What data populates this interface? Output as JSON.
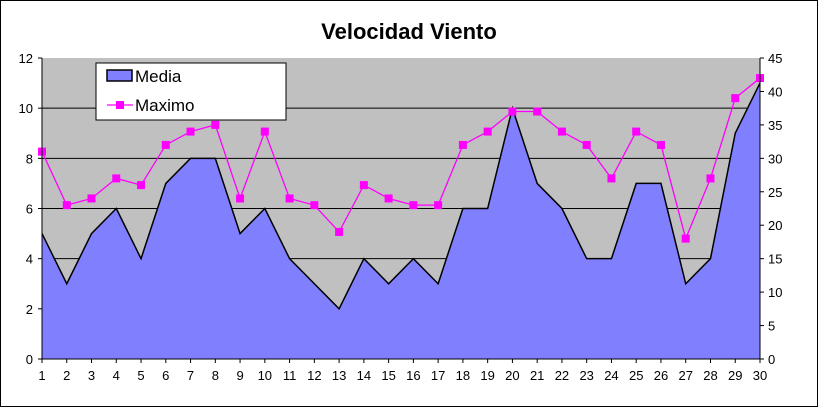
{
  "chart_data": {
    "type": "area+line",
    "title": "Velocidad Viento",
    "xlabel": "",
    "ylabel": "",
    "categories": [
      1,
      2,
      3,
      4,
      5,
      6,
      7,
      8,
      9,
      10,
      11,
      12,
      13,
      14,
      15,
      16,
      17,
      18,
      19,
      20,
      21,
      22,
      23,
      24,
      25,
      26,
      27,
      28,
      29,
      30
    ],
    "series": [
      {
        "name": "Media",
        "type": "area",
        "axis": "left",
        "color": "#8080FF",
        "values": [
          5,
          3,
          5,
          6,
          4,
          7,
          8,
          8,
          5,
          6,
          4,
          3,
          2,
          4,
          3,
          4,
          3,
          6,
          6,
          10,
          7,
          6,
          4,
          4,
          7,
          7,
          3,
          4,
          9,
          11
        ]
      },
      {
        "name": "Maximo",
        "type": "line",
        "axis": "right",
        "color": "#FF00FF",
        "values": [
          31,
          23,
          24,
          27,
          26,
          32,
          34,
          35,
          24,
          34,
          24,
          23,
          19,
          26,
          24,
          23,
          23,
          32,
          34,
          37,
          37,
          34,
          32,
          27,
          34,
          32,
          18,
          27,
          39,
          42
        ]
      }
    ],
    "ylim_left": [
      0,
      12
    ],
    "yticks_left": [
      0,
      2,
      4,
      6,
      8,
      10,
      12
    ],
    "ylim_right": [
      0,
      45
    ],
    "yticks_right": [
      0,
      5,
      10,
      15,
      20,
      25,
      30,
      35,
      40,
      45
    ],
    "grid": true,
    "plot_background": "#C0C0C0",
    "legend_position": "top-left"
  }
}
